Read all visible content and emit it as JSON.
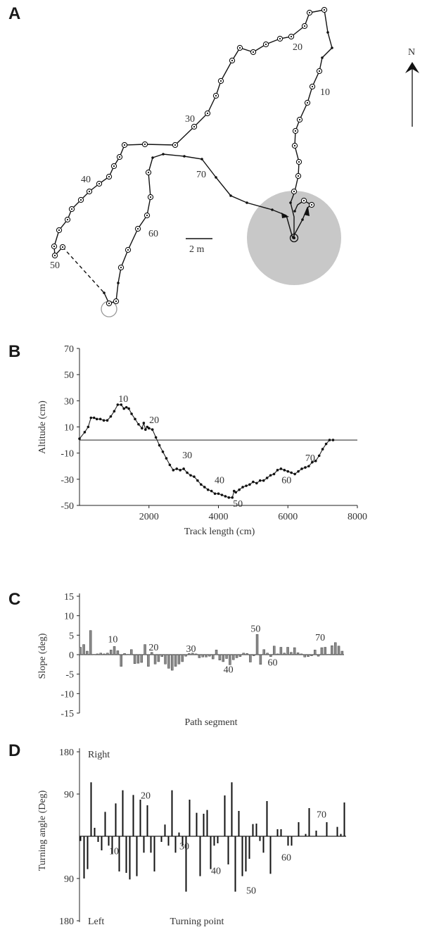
{
  "panels": {
    "a": "A",
    "b": "B",
    "c": "C",
    "d": "D"
  },
  "map": {
    "north_label": "N",
    "scale_label": "2 m",
    "point_labels": [
      {
        "text": "10"
      },
      {
        "text": "20"
      },
      {
        "text": "30"
      },
      {
        "text": "40"
      },
      {
        "text": "50"
      },
      {
        "text": "60"
      },
      {
        "text": "70"
      }
    ]
  },
  "chart_data": [
    {
      "panel": "B",
      "type": "line",
      "xlabel": "Track length (cm)",
      "ylabel": "Altitude (cm)",
      "xlim": [
        0,
        8000
      ],
      "ylim": [
        -50,
        70
      ],
      "x_ticks": [
        2000,
        4000,
        6000,
        8000
      ],
      "y_ticks": [
        70,
        50,
        30,
        10,
        -10,
        -30,
        -50
      ],
      "annotations": [
        "10",
        "20",
        "30",
        "40",
        "50",
        "60",
        "70"
      ],
      "series": [
        {
          "x": [
            0,
            150,
            250,
            330,
            420,
            500,
            600,
            700,
            800,
            900,
            1000,
            1100,
            1200,
            1280,
            1350,
            1420,
            1500,
            1600,
            1700,
            1800,
            1850,
            1900,
            1950,
            2000,
            2100,
            2200,
            2300,
            2400,
            2500,
            2600,
            2700,
            2800,
            2900,
            3000,
            3100,
            3200,
            3300,
            3400,
            3500,
            3600,
            3700,
            3800,
            3900,
            4000,
            4100,
            4200,
            4300,
            4400,
            4450,
            4500,
            4600,
            4700,
            4800,
            4900,
            5000,
            5100,
            5200,
            5300,
            5400,
            5500,
            5600,
            5700,
            5800,
            5900,
            6000,
            6100,
            6200,
            6300,
            6400,
            6500,
            6600,
            6700,
            6800,
            6900,
            7000,
            7100,
            7200,
            7300
          ],
          "y": [
            1,
            6,
            10,
            17,
            17,
            16,
            16,
            15,
            15,
            18,
            22,
            27,
            27,
            24,
            25,
            24,
            20,
            16,
            12,
            9,
            13,
            8,
            10,
            9,
            8,
            2,
            -4,
            -9,
            -14,
            -19,
            -23,
            -22,
            -23,
            -22,
            -25,
            -27,
            -28,
            -31,
            -34,
            -36,
            -38,
            -39,
            -41,
            -41,
            -42,
            -43,
            -44,
            -44,
            -39,
            -40,
            -38,
            -36,
            -35,
            -34,
            -32,
            -33,
            -31,
            -31,
            -29,
            -27,
            -26,
            -23,
            -22,
            -23,
            -24,
            -25,
            -26,
            -24,
            -22,
            -21,
            -20,
            -17,
            -16,
            -12,
            -7,
            -3,
            0,
            0
          ]
        }
      ]
    },
    {
      "panel": "C",
      "type": "bar",
      "xlabel": "Path segment",
      "ylabel": "Slope (deg)",
      "ylim": [
        -15,
        15
      ],
      "y_ticks": [
        15,
        10,
        5,
        0,
        -5,
        -10,
        -15
      ],
      "annotations": [
        "10",
        "20",
        "30",
        "40",
        "50",
        "60",
        "70"
      ],
      "values": [
        1.9,
        2.6,
        0.9,
        6.2,
        0.1,
        0.2,
        0.4,
        0.2,
        0.4,
        1.2,
        2.1,
        1.0,
        -3.0,
        0.3,
        0.1,
        1.3,
        -2.3,
        -2.2,
        -2.0,
        2.6,
        -3.0,
        0.6,
        -2.4,
        -1.8,
        -0.5,
        -2.4,
        -3.5,
        -4.0,
        -3.0,
        -2.4,
        -1.8,
        -0.4,
        0.3,
        0.4,
        0.2,
        -0.8,
        -0.6,
        -0.6,
        -0.4,
        -1.1,
        1.2,
        -1.4,
        -1.8,
        -1.0,
        -2.6,
        -1.3,
        -0.8,
        -0.5,
        0.4,
        0.3,
        -1.9,
        -0.3,
        5.2,
        -2.5,
        1.3,
        0.4,
        -0.5,
        2.2,
        0.2,
        1.9,
        0.4,
        1.9,
        0.6,
        1.8,
        0.5,
        0.2,
        -0.6,
        -0.5,
        -0.3,
        1.2,
        -0.4,
        1.8,
        1.9,
        0.1,
        2.3,
        3.1,
        2.2,
        0.9
      ]
    },
    {
      "panel": "D",
      "type": "bar",
      "xlabel": "Turning point",
      "ylabel": "Turning angle (Deg)",
      "ylim": [
        -180,
        180
      ],
      "y_tick_labels": [
        "180",
        "90",
        "90",
        "180"
      ],
      "direction_labels": [
        "Right",
        "Left"
      ],
      "annotations": [
        "10",
        "20",
        "30",
        "40",
        "50",
        "60",
        "70"
      ],
      "values": [
        -10,
        -90,
        -70,
        115,
        18,
        -12,
        -30,
        52,
        -20,
        -38,
        70,
        -75,
        98,
        -78,
        -92,
        88,
        -85,
        78,
        -35,
        66,
        -35,
        -75,
        0,
        -12,
        25,
        -20,
        98,
        -35,
        8,
        -20,
        -118,
        78,
        0,
        50,
        -85,
        48,
        56,
        -70,
        -20,
        -15,
        0,
        87,
        -60,
        115,
        -118,
        54,
        -85,
        -75,
        -48,
        26,
        27,
        -10,
        -35,
        75,
        -80,
        0,
        15,
        15,
        0,
        -20,
        -20,
        0,
        30,
        0,
        5,
        60,
        0,
        12,
        0,
        0,
        30,
        0,
        0,
        20,
        5,
        72
      ]
    }
  ]
}
